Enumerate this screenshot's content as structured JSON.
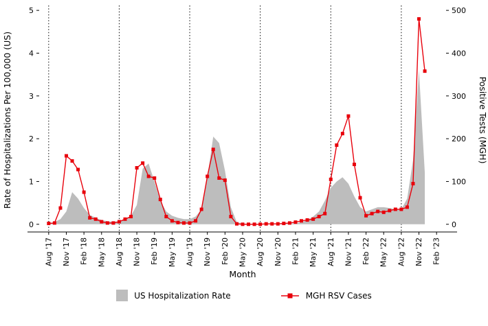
{
  "chart_data": {
    "type": "line",
    "title": "",
    "xlabel": "Month",
    "ylabel_left": "Rate of Hospitalizations Per 100,000 (US)",
    "ylabel_right": "Positive Tests (MGH)",
    "left_ylim": [
      0,
      5
    ],
    "left_ticks": [
      0,
      1,
      2,
      3,
      4,
      5
    ],
    "right_ylim": [
      0,
      500
    ],
    "right_ticks": [
      0,
      100,
      200,
      300,
      400,
      500
    ],
    "x_tick_labels": [
      "Aug '17",
      "Nov '17",
      "Feb '18",
      "May '18",
      "Aug '18",
      "Nov '18",
      "Feb '19",
      "May '19",
      "Aug '19",
      "Nov '19",
      "Feb '20",
      "May '20",
      "Aug '20",
      "Nov '20",
      "Feb '21",
      "May '21",
      "Aug '21",
      "Nov '21",
      "Feb '22",
      "May '22",
      "Aug '22",
      "Nov '22",
      "Feb '23"
    ],
    "x_tick_step": 3,
    "x_months": [
      "Aug '17",
      "Sep '17",
      "Oct '17",
      "Nov '17",
      "Dec '17",
      "Jan '18",
      "Feb '18",
      "Mar '18",
      "Apr '18",
      "May '18",
      "Jun '18",
      "Jul '18",
      "Aug '18",
      "Sep '18",
      "Oct '18",
      "Nov '18",
      "Dec '18",
      "Jan '19",
      "Feb '19",
      "Mar '19",
      "Apr '19",
      "May '19",
      "Jun '19",
      "Jul '19",
      "Aug '19",
      "Sep '19",
      "Oct '19",
      "Nov '19",
      "Dec '19",
      "Jan '20",
      "Feb '20",
      "Mar '20",
      "Apr '20",
      "May '20",
      "Jun '20",
      "Jul '20",
      "Aug '20",
      "Sep '20",
      "Oct '20",
      "Nov '20",
      "Dec '20",
      "Jan '21",
      "Feb '21",
      "Mar '21",
      "Apr '21",
      "May '21",
      "Jun '21",
      "Jul '21",
      "Aug '21",
      "Sep '21",
      "Oct '21",
      "Nov '21",
      "Dec '21",
      "Jan '22",
      "Feb '22",
      "Mar '22",
      "Apr '22",
      "May '22",
      "Jun '22",
      "Jul '22",
      "Aug '22",
      "Sep '22",
      "Oct '22",
      "Nov '22",
      "Dec '22"
    ],
    "series": [
      {
        "name": "US Hospitalization Rate",
        "axis": "left",
        "style": "area",
        "color": "#bdbdbd",
        "values": [
          0.02,
          0.05,
          0.12,
          0.3,
          0.75,
          0.6,
          0.38,
          0.22,
          0.15,
          0.1,
          0.07,
          0.06,
          0.07,
          0.12,
          0.2,
          0.45,
          1.3,
          1.42,
          1.0,
          0.55,
          0.3,
          0.2,
          0.15,
          0.12,
          0.12,
          0.18,
          0.35,
          1.1,
          2.05,
          1.9,
          1.25,
          0.4,
          0.05,
          0.02,
          0.01,
          0.01,
          0.01,
          0.01,
          0.01,
          0.01,
          0.02,
          0.02,
          0.02,
          0.05,
          0.1,
          0.18,
          0.3,
          0.55,
          0.85,
          1.0,
          1.1,
          0.95,
          0.65,
          0.4,
          0.3,
          0.35,
          0.4,
          0.4,
          0.38,
          0.35,
          0.35,
          0.6,
          1.5,
          3.6,
          1.2
        ]
      },
      {
        "name": "MGH RSV Cases",
        "axis": "right",
        "style": "line-marker",
        "color": "#e8000b",
        "values": [
          2,
          3,
          38,
          160,
          148,
          128,
          75,
          15,
          12,
          6,
          3,
          3,
          6,
          12,
          18,
          132,
          143,
          112,
          108,
          58,
          18,
          8,
          4,
          3,
          3,
          8,
          35,
          112,
          175,
          108,
          103,
          18,
          1,
          0,
          0,
          0,
          0,
          1,
          1,
          1,
          2,
          3,
          5,
          8,
          10,
          12,
          18,
          25,
          105,
          185,
          212,
          253,
          140,
          62,
          20,
          25,
          30,
          28,
          32,
          35,
          35,
          40,
          95,
          480,
          358
        ]
      }
    ],
    "reference_lines": {
      "style": "dotted-vertical",
      "color": "#000000",
      "months": [
        "Aug '17",
        "Aug '18",
        "Aug '19",
        "Aug '20",
        "Aug '21",
        "Aug '22"
      ]
    },
    "legend_position": "bottom"
  }
}
